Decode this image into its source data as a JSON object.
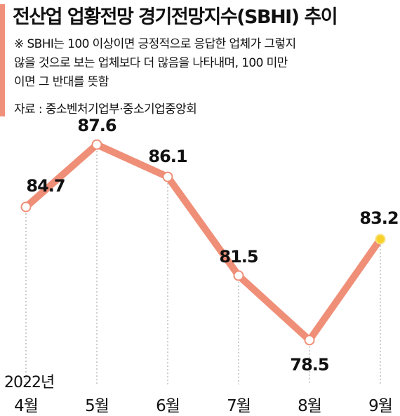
{
  "header": {
    "title": "전산업 업황전망 경기전망지수(SBHI) 추이",
    "note_lines": [
      "※ SBHI는 100 이상이면 긍정적으로 응답한 업체가 그렇지",
      "않을 것으로 보는 업체보다 더 많음을 나타내며, 100 미만",
      "이면 그 반대를 뜻함"
    ],
    "source": "자료 : 중소벤처기업부·중소기업중앙회"
  },
  "colors": {
    "accent": "#f0907a",
    "line": "#ef8f78",
    "marker_fill": "#ffffff",
    "highlight_fill": "#f7d12a",
    "guide": "#999999"
  },
  "chart_data": {
    "type": "line",
    "year_label": "2022년",
    "categories": [
      "4월",
      "5월",
      "6월",
      "7월",
      "8월",
      "9월"
    ],
    "values": [
      84.7,
      87.6,
      86.1,
      81.5,
      78.5,
      83.2
    ],
    "value_labels": [
      "84.7",
      "87.6",
      "86.1",
      "81.5",
      "78.5",
      "83.2"
    ],
    "highlight_index": 5,
    "ylim": [
      76.5,
      89.5
    ],
    "grid": false,
    "legend": "none"
  }
}
